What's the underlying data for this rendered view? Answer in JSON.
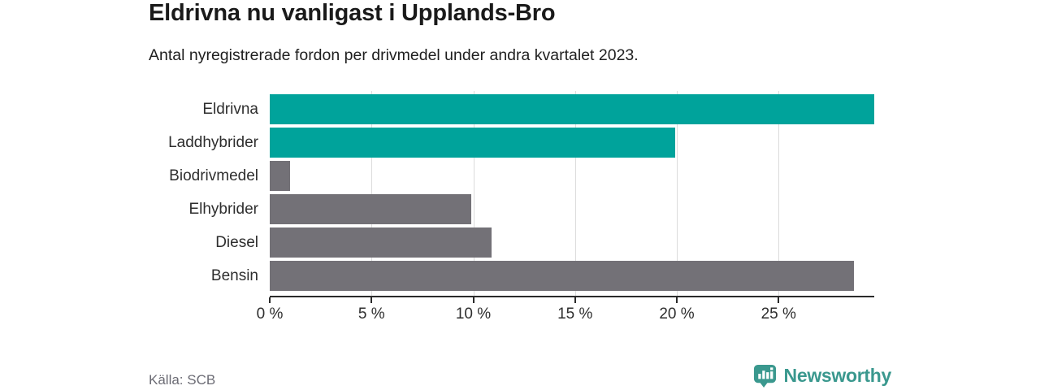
{
  "header": {
    "title": "Eldrivna nu vanligast i Upplands-Bro",
    "subtitle": "Antal nyregistrerade fordon per drivmedel under andra kvartalet 2023."
  },
  "footer": {
    "source": "Källa: SCB",
    "brand": "Newsworthy"
  },
  "colors": {
    "highlight_bar": "#00a39b",
    "default_bar": "#737177",
    "gridline": "#dcdcdc",
    "axis": "#2b2b2b",
    "logo_teal": "#3a988e"
  },
  "icons": {
    "logo_icon": "newsworthy-bar-chart-bubble-icon"
  },
  "chart_data": {
    "type": "bar",
    "orientation": "horizontal",
    "title": "Eldrivna nu vanligast i Upplands-Bro",
    "subtitle": "Antal nyregistrerade fordon per drivmedel under andra kvartalet 2023.",
    "categories": [
      "Eldrivna",
      "Laddhybrider",
      "Biodrivmedel",
      "Elhybrider",
      "Diesel",
      "Bensin"
    ],
    "values": [
      29.7,
      19.9,
      1.0,
      9.9,
      10.9,
      28.7
    ],
    "unit": "%",
    "bar_colors": [
      "#00a39b",
      "#00a39b",
      "#737177",
      "#737177",
      "#737177",
      "#737177"
    ],
    "xlim": [
      0,
      29.7
    ],
    "xticks": [
      0,
      5,
      10,
      15,
      20,
      25
    ],
    "xtick_labels": [
      "0 %",
      "5 %",
      "10 %",
      "15 %",
      "20 %",
      "25 %"
    ],
    "grid": true,
    "legend": "none",
    "value_labels": "none"
  }
}
